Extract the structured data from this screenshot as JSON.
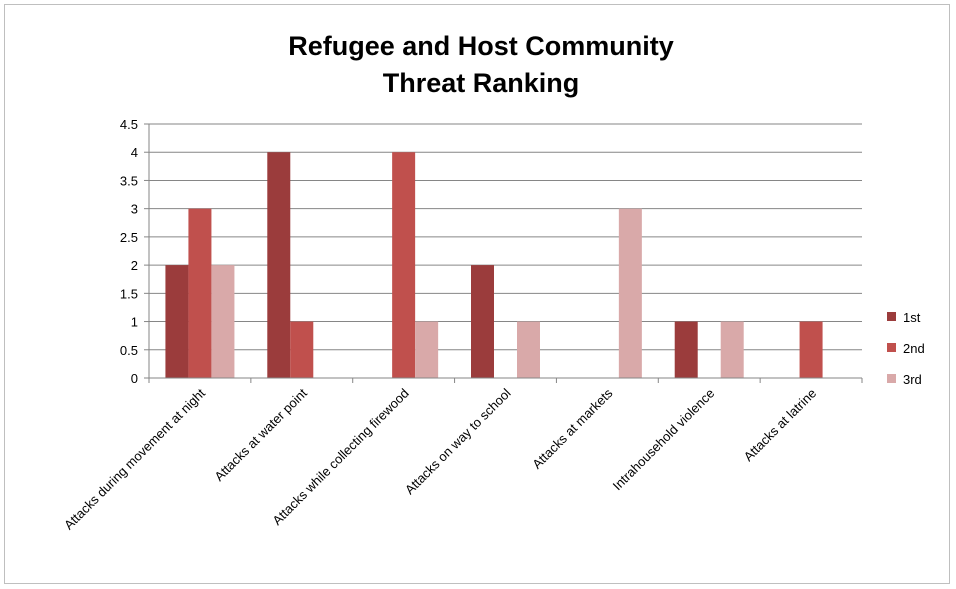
{
  "chart_data": {
    "type": "bar",
    "title_lines": [
      "Refugee and Host Community",
      "Threat Ranking"
    ],
    "categories": [
      "Attacks during movement at night",
      "Attacks at water point",
      "Attacks while collecting firewood",
      "Attacks on way to school",
      "Attacks at markets",
      "Intrahousehold violence",
      "Attacks at latrine"
    ],
    "series": [
      {
        "name": "1st",
        "values": [
          2,
          4,
          0,
          2,
          0,
          1,
          0
        ],
        "color": "#9b3c3c"
      },
      {
        "name": "2nd",
        "values": [
          3,
          1,
          4,
          0,
          0,
          0,
          1
        ],
        "color": "#c0504d"
      },
      {
        "name": "3rd",
        "values": [
          2,
          0,
          1,
          1,
          3,
          1,
          0
        ],
        "color": "#d9a9a9"
      }
    ],
    "ylim": [
      0,
      4.5
    ],
    "yticks": [
      "0",
      "0.5",
      "1",
      "1.5",
      "2",
      "2.5",
      "3",
      "3.5",
      "4",
      "4.5"
    ],
    "xlabel": "",
    "ylabel": "",
    "grid": true,
    "legend_position": "right"
  }
}
